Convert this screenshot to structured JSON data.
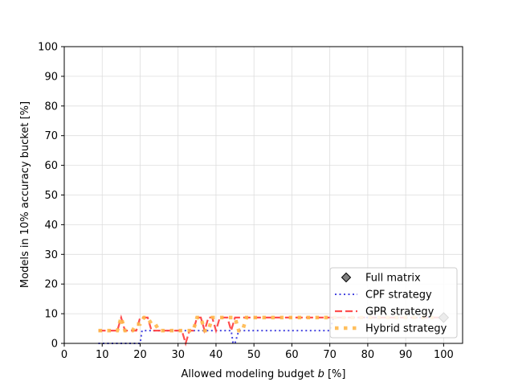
{
  "chart_data": {
    "type": "line",
    "title": "",
    "xlabel_prefix": "Allowed modeling budget ",
    "xlabel_var": "b",
    "xlabel_suffix": " [%]",
    "ylabel": "Models in 10% accuracy bucket [%]",
    "xlim": [
      0,
      105
    ],
    "ylim": [
      0,
      100
    ],
    "xticks": [
      "0",
      "10",
      "20",
      "30",
      "40",
      "50",
      "60",
      "70",
      "80",
      "90",
      "100"
    ],
    "yticks": [
      "0",
      "10",
      "20",
      "30",
      "40",
      "50",
      "60",
      "70",
      "80",
      "90",
      "100"
    ],
    "grid": true,
    "legend_position": "lower-right",
    "series": [
      {
        "name": "Full matrix",
        "style": "marker-diamond",
        "color": "#808080",
        "x": [
          100
        ],
        "y": [
          8.7
        ]
      },
      {
        "name": "CPF strategy",
        "style": "dotted",
        "color": "#3333dd",
        "x": [
          9,
          9.5,
          10,
          11,
          12,
          13,
          14,
          15,
          16,
          17,
          18,
          19,
          20,
          20.5,
          21,
          22,
          23,
          24,
          25,
          26,
          27,
          28,
          29,
          30,
          31,
          31.5,
          32,
          33,
          34,
          35,
          36,
          37,
          38,
          39,
          40,
          41,
          42,
          43,
          44,
          44.5,
          45,
          46,
          47,
          48,
          50,
          55,
          60,
          65,
          70,
          71,
          72,
          75,
          80,
          85,
          90,
          95,
          99
        ],
        "y": [
          0,
          0,
          0,
          0,
          0,
          0,
          0,
          0,
          0,
          0,
          0,
          0,
          0,
          4.3,
          4.3,
          4.3,
          4.3,
          4.3,
          4.3,
          4.3,
          4.3,
          4.3,
          4.3,
          4.3,
          4.3,
          4.3,
          4.3,
          4.3,
          4.3,
          4.3,
          4.3,
          4.3,
          4.3,
          4.3,
          4.3,
          4.3,
          4.3,
          4.3,
          4.3,
          0,
          0,
          4.3,
          4.3,
          4.3,
          4.3,
          4.3,
          4.3,
          4.3,
          4.3,
          8.7,
          8.7,
          8.7,
          8.7,
          8.7,
          8.7,
          8.7,
          8.7
        ]
      },
      {
        "name": "GPR strategy",
        "style": "dashed",
        "color": "#ff4444",
        "x": [
          9,
          10,
          11,
          12,
          13,
          14,
          15,
          16,
          17,
          18,
          19,
          20,
          21,
          22,
          23,
          24,
          25,
          26,
          27,
          28,
          29,
          30,
          31,
          32,
          33,
          34,
          35,
          36,
          37,
          38,
          39,
          40,
          41,
          42,
          43,
          44,
          45,
          46,
          47,
          48,
          50,
          55,
          60,
          65,
          70,
          75,
          80,
          85,
          90,
          95,
          99
        ],
        "y": [
          4.3,
          4.3,
          4.3,
          4.3,
          4.3,
          4.3,
          8.7,
          4.3,
          4.3,
          4.3,
          4.3,
          8.7,
          8.7,
          8.7,
          4.3,
          4.3,
          4.3,
          4.3,
          4.3,
          4.3,
          4.3,
          4.3,
          4.3,
          0,
          4.3,
          4.3,
          8.7,
          8.7,
          4.3,
          8.7,
          8.7,
          4.3,
          8.7,
          8.7,
          8.7,
          4.3,
          8.7,
          8.7,
          8.7,
          8.7,
          8.7,
          8.7,
          8.7,
          8.7,
          8.7,
          8.7,
          8.7,
          8.7,
          8.7,
          8.7,
          8.7
        ]
      },
      {
        "name": "Hybrid strategy",
        "style": "thick-dotted",
        "color": "#ffb84d",
        "x": [
          9,
          10,
          11,
          12,
          13,
          14,
          15,
          16,
          17,
          18,
          19,
          20,
          21,
          22,
          23,
          24,
          25,
          26,
          27,
          28,
          29,
          30,
          31,
          32,
          33,
          34,
          35,
          36,
          37,
          38,
          39,
          40,
          41,
          42,
          43,
          44,
          45,
          46,
          47,
          48,
          50,
          55,
          60,
          65,
          70,
          75,
          80,
          85,
          90,
          95,
          99
        ],
        "y": [
          4.3,
          4.3,
          4.3,
          4.3,
          4.3,
          4.3,
          8.7,
          4.3,
          4.3,
          4.3,
          6.5,
          6.5,
          8.7,
          8.7,
          6.5,
          6.5,
          4.3,
          4.3,
          4.3,
          4.3,
          4.3,
          4.3,
          4.3,
          4.3,
          4.3,
          4.3,
          8.7,
          8.7,
          4.3,
          4.3,
          8.7,
          8.7,
          8.7,
          8.7,
          8.7,
          8.7,
          8.7,
          4.3,
          4.3,
          8.7,
          8.7,
          8.7,
          8.7,
          8.7,
          8.7,
          8.7,
          8.7,
          8.7,
          8.7,
          8.7,
          8.7
        ]
      }
    ]
  }
}
